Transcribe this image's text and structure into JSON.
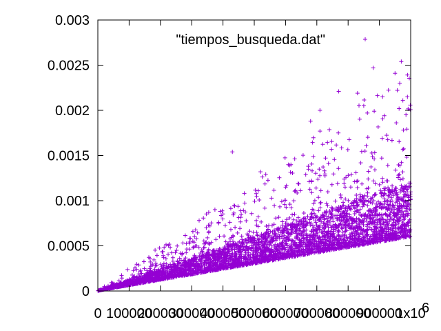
{
  "chart_data": {
    "type": "scatter",
    "title": "",
    "xlabel": "",
    "ylabel": "",
    "xlim": [
      0,
      1000000
    ],
    "ylim": [
      0,
      0.003
    ],
    "x_ticks": [
      0,
      100000,
      200000,
      300000,
      400000,
      500000,
      600000,
      700000,
      800000,
      900000,
      1000000
    ],
    "x_tick_labels": [
      "0",
      "100000",
      "200000",
      "300000",
      "400000",
      "500000",
      "600000",
      "700000",
      "800000",
      "900000",
      "1x10"
    ],
    "x_tick_exponent": "6",
    "y_ticks": [
      0,
      0.0005,
      0.001,
      0.0015,
      0.002,
      0.0025,
      0.003
    ],
    "y_tick_labels": [
      "0",
      "0.0005",
      "0.001",
      "0.0015",
      "0.002",
      "0.0025",
      "0.003"
    ],
    "grid": false,
    "legend_position": "top",
    "series": [
      {
        "name": "\"tiempos_busqueda.dat\"",
        "color": "#9400d3",
        "marker": "plus",
        "trend": {
          "lower_edge_at_max_x": 0.0006,
          "dense_upper_edge_at_max_x": 0.0012,
          "sparse_upper_edge_at_max_x": 0.0025
        },
        "notable_points": [
          {
            "x": 430000,
            "y": 0.00154
          },
          {
            "x": 520000,
            "y": 0.00132
          },
          {
            "x": 680000,
            "y": 0.00188
          },
          {
            "x": 710000,
            "y": 0.002
          },
          {
            "x": 710000,
            "y": 0.00177
          },
          {
            "x": 770000,
            "y": 0.00221
          },
          {
            "x": 830000,
            "y": 0.00219
          },
          {
            "x": 850000,
            "y": 0.00205
          },
          {
            "x": 880000,
            "y": 0.00247
          },
          {
            "x": 910000,
            "y": 0.00215
          },
          {
            "x": 950000,
            "y": 0.00241
          },
          {
            "x": 970000,
            "y": 0.00254
          },
          {
            "x": 975000,
            "y": 0.00211
          },
          {
            "x": 985000,
            "y": 0.00195
          }
        ]
      }
    ]
  }
}
